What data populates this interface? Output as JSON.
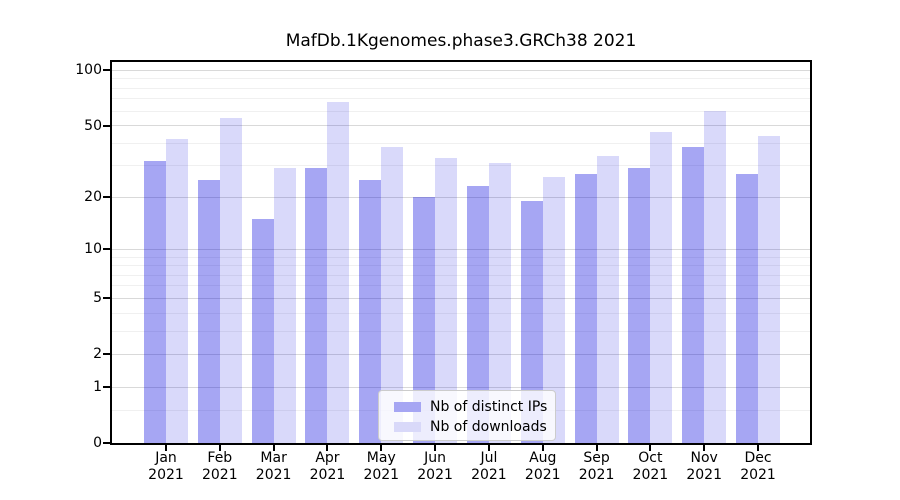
{
  "figure": {
    "background": "#ffffff",
    "title": "MafDb.1Kgenomes.phase3.GRCh38 2021"
  },
  "chart_data": {
    "type": "bar",
    "title": "MafDb.1Kgenomes.phase3.GRCh38 2021",
    "categories": [
      "Jan",
      "Feb",
      "Mar",
      "Apr",
      "May",
      "Jun",
      "Jul",
      "Aug",
      "Sep",
      "Oct",
      "Nov",
      "Dec"
    ],
    "year": "2021",
    "series": [
      {
        "name": "Nb of distinct IPs",
        "legend_color": "#a6a6f3",
        "fill": "rgba(0,0,220,0.35)",
        "values": [
          32,
          25,
          15,
          29,
          25,
          20,
          23,
          19,
          27,
          29,
          38,
          27
        ]
      },
      {
        "name": "Nb of downloads",
        "legend_color": "#d9d9f9",
        "fill": "rgba(0,0,220,0.15)",
        "values": [
          42,
          55,
          29,
          67,
          38,
          33,
          31,
          26,
          34,
          46,
          60,
          44
        ]
      }
    ],
    "yscale": "log1p",
    "yticks": [
      0,
      1,
      2,
      5,
      10,
      20,
      50,
      100
    ],
    "minor_gridlines": [
      0.5,
      3,
      4,
      6,
      7,
      8,
      9,
      30,
      40,
      60,
      70,
      80,
      90
    ],
    "ylim": [
      0,
      112
    ],
    "grid": true,
    "legend_position": "lower center",
    "gridline_major_color": "#d9d9d9",
    "gridline_minor_color": "#f0f0f0"
  }
}
